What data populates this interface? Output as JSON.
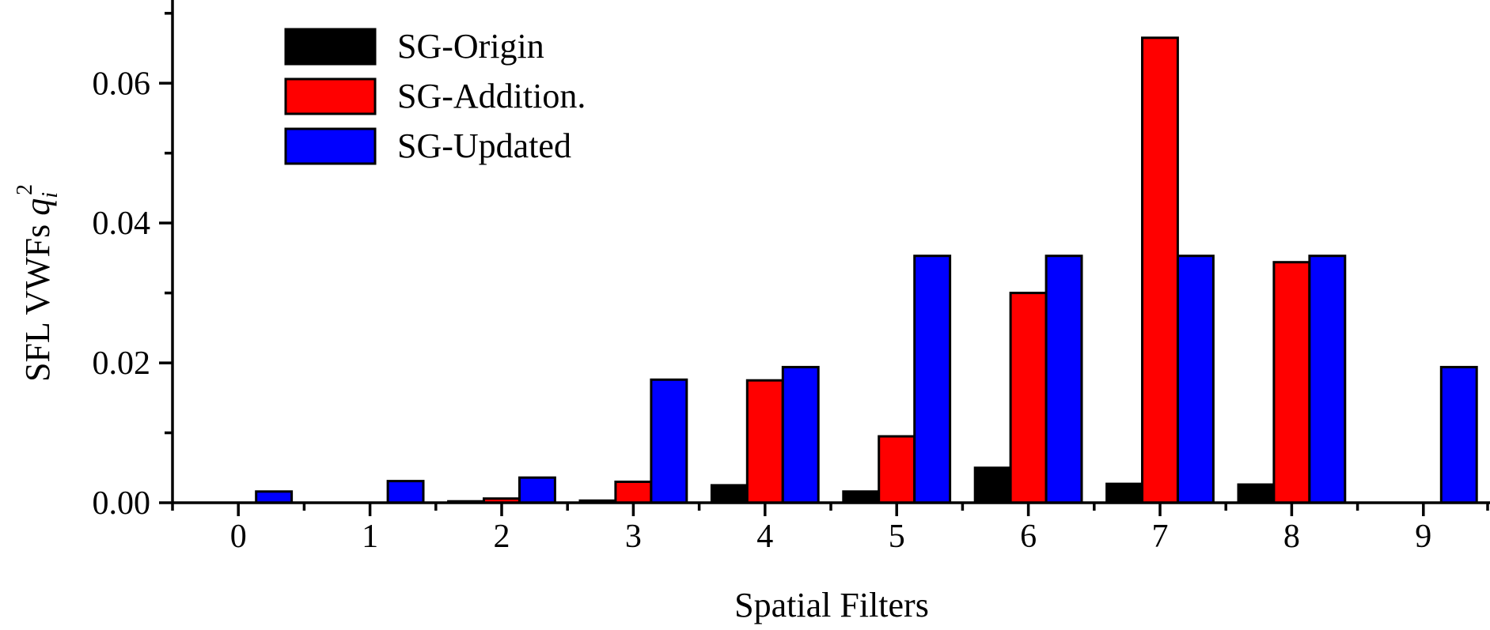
{
  "chart_data": {
    "type": "bar",
    "title": "",
    "xlabel": "Spatial Filters",
    "ylabel": "SFL VWFs q_i^2",
    "ylabel_parts": {
      "text": "SFL VWFs ",
      "var": "q",
      "sub": "i",
      "sup": "2"
    },
    "categories": [
      "0",
      "1",
      "2",
      "3",
      "4",
      "5",
      "6",
      "7",
      "8",
      "9"
    ],
    "series": [
      {
        "name": "SG-Origin",
        "color": "#000000",
        "values": [
          0,
          0,
          0.0002,
          0.0003,
          0.0025,
          0.0016,
          0.005,
          0.0027,
          0.0026,
          0
        ]
      },
      {
        "name": "SG-Addition.",
        "color": "#ff0000",
        "values": [
          0,
          0,
          0.0006,
          0.003,
          0.0175,
          0.0095,
          0.03,
          0.0665,
          0.0344,
          0
        ]
      },
      {
        "name": "SG-Updated",
        "color": "#0000ff",
        "values": [
          0.0016,
          0.0031,
          0.0036,
          0.0176,
          0.0194,
          0.0353,
          0.0353,
          0.0353,
          0.0353,
          0.0194
        ]
      }
    ],
    "yticks": [
      "0.00",
      "0.02",
      "0.04",
      "0.06"
    ],
    "ytick_values": [
      0,
      0.02,
      0.04,
      0.06
    ],
    "yminor_values": [
      0.01,
      0.03,
      0.05,
      0.07
    ],
    "ylim": [
      0,
      0.0719
    ],
    "xlim": [
      -0.5,
      9.5
    ],
    "grid": false,
    "legend_position": "upper-left"
  }
}
